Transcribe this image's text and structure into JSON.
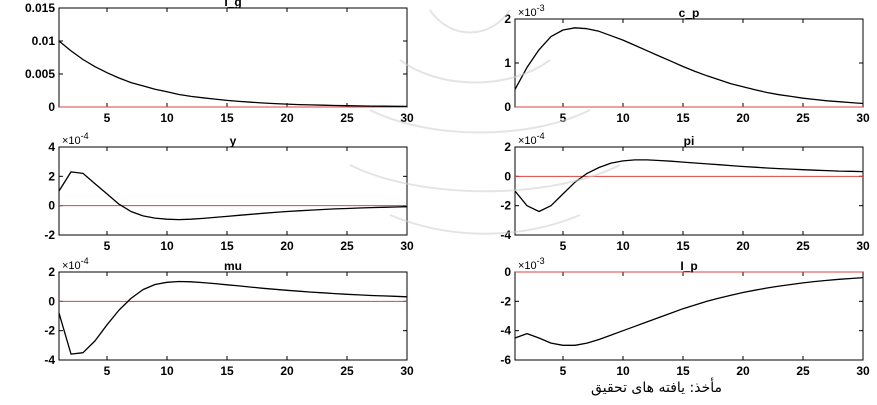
{
  "caption": "مأخذ: یافته های تحقیق",
  "chart_data": [
    {
      "type": "line",
      "title": "I_g",
      "exponent": "",
      "xlim": [
        1,
        30
      ],
      "ylim": [
        0,
        0.015
      ],
      "xticks": [
        "5",
        "10",
        "15",
        "20",
        "25",
        "30"
      ],
      "yticks": [
        {
          "v": 0,
          "label": "0"
        },
        {
          "v": 0.005,
          "label": "0.005"
        },
        {
          "v": 0.01,
          "label": "0.01"
        },
        {
          "v": 0.015,
          "label": "0.015"
        }
      ],
      "zero_line": true,
      "x": [
        1,
        2,
        3,
        4,
        5,
        6,
        7,
        8,
        9,
        10,
        11,
        12,
        13,
        14,
        15,
        16,
        17,
        18,
        19,
        20,
        21,
        22,
        23,
        24,
        25,
        26,
        27,
        28,
        29,
        30
      ],
      "y": [
        0.01,
        0.0085,
        0.0072,
        0.0061,
        0.0052,
        0.0044,
        0.0037,
        0.0032,
        0.0027,
        0.0023,
        0.0019,
        0.0016,
        0.0014,
        0.0012,
        0.001,
        0.00085,
        0.00072,
        0.00061,
        0.00052,
        0.00044,
        0.00037,
        0.00032,
        0.00027,
        0.00023,
        0.00019,
        0.00016,
        0.00014,
        0.00012,
        0.0001,
        9e-05
      ]
    },
    {
      "type": "line",
      "title": "c_p",
      "exponent": "-3",
      "xlim": [
        1,
        30
      ],
      "ylim": [
        0,
        2
      ],
      "xticks": [
        "5",
        "10",
        "15",
        "20",
        "25",
        "30"
      ],
      "yticks": [
        {
          "v": 0,
          "label": "0"
        },
        {
          "v": 1,
          "label": "1"
        },
        {
          "v": 2,
          "label": "2"
        }
      ],
      "zero_line": true,
      "x": [
        1,
        2,
        3,
        4,
        5,
        6,
        7,
        8,
        9,
        10,
        11,
        12,
        13,
        14,
        15,
        16,
        17,
        18,
        19,
        20,
        21,
        22,
        23,
        24,
        25,
        26,
        27,
        28,
        29,
        30
      ],
      "y": [
        0.4,
        0.9,
        1.3,
        1.6,
        1.75,
        1.8,
        1.78,
        1.72,
        1.62,
        1.52,
        1.4,
        1.28,
        1.16,
        1.04,
        0.92,
        0.81,
        0.71,
        0.62,
        0.53,
        0.46,
        0.39,
        0.33,
        0.28,
        0.24,
        0.2,
        0.17,
        0.14,
        0.12,
        0.1,
        0.08
      ]
    },
    {
      "type": "line",
      "title": "y",
      "exponent": "-4",
      "xlim": [
        1,
        30
      ],
      "ylim": [
        -2,
        4
      ],
      "xticks": [
        "5",
        "10",
        "15",
        "20",
        "25",
        "30"
      ],
      "yticks": [
        {
          "v": -2,
          "label": "-2"
        },
        {
          "v": 0,
          "label": "0"
        },
        {
          "v": 2,
          "label": "2"
        },
        {
          "v": 4,
          "label": "4"
        }
      ],
      "zero_line": true,
      "x": [
        1,
        2,
        3,
        4,
        5,
        6,
        7,
        8,
        9,
        10,
        11,
        12,
        13,
        14,
        15,
        16,
        17,
        18,
        19,
        20,
        21,
        22,
        23,
        24,
        25,
        26,
        27,
        28,
        29,
        30
      ],
      "y": [
        1.0,
        2.3,
        2.2,
        1.5,
        0.8,
        0.1,
        -0.4,
        -0.7,
        -0.85,
        -0.92,
        -0.95,
        -0.92,
        -0.87,
        -0.8,
        -0.73,
        -0.66,
        -0.59,
        -0.52,
        -0.46,
        -0.4,
        -0.35,
        -0.3,
        -0.26,
        -0.22,
        -0.19,
        -0.16,
        -0.13,
        -0.11,
        -0.09,
        -0.07
      ]
    },
    {
      "type": "line",
      "title": "pi",
      "exponent": "-4",
      "xlim": [
        1,
        30
      ],
      "ylim": [
        -4,
        2
      ],
      "xticks": [
        "5",
        "10",
        "15",
        "20",
        "25",
        "30"
      ],
      "yticks": [
        {
          "v": -4,
          "label": "-4"
        },
        {
          "v": -2,
          "label": "-2"
        },
        {
          "v": 0,
          "label": "0"
        },
        {
          "v": 2,
          "label": "2"
        }
      ],
      "zero_line": true,
      "x": [
        1,
        2,
        3,
        4,
        5,
        6,
        7,
        8,
        9,
        10,
        11,
        12,
        13,
        14,
        15,
        16,
        17,
        18,
        19,
        20,
        21,
        22,
        23,
        24,
        25,
        26,
        27,
        28,
        29,
        30
      ],
      "y": [
        -1.0,
        -2.0,
        -2.4,
        -2.0,
        -1.2,
        -0.4,
        0.2,
        0.6,
        0.9,
        1.05,
        1.12,
        1.12,
        1.08,
        1.03,
        0.97,
        0.91,
        0.85,
        0.79,
        0.73,
        0.67,
        0.62,
        0.57,
        0.53,
        0.49,
        0.45,
        0.42,
        0.39,
        0.36,
        0.34,
        0.32
      ]
    },
    {
      "type": "line",
      "title": "mu",
      "exponent": "-4",
      "xlim": [
        1,
        30
      ],
      "ylim": [
        -4,
        2
      ],
      "xticks": [
        "5",
        "10",
        "15",
        "20",
        "25",
        "30"
      ],
      "yticks": [
        {
          "v": -4,
          "label": "-4"
        },
        {
          "v": -2,
          "label": "-2"
        },
        {
          "v": 0,
          "label": "0"
        },
        {
          "v": 2,
          "label": "2"
        }
      ],
      "zero_line": true,
      "x": [
        1,
        2,
        3,
        4,
        5,
        6,
        7,
        8,
        9,
        10,
        11,
        12,
        13,
        14,
        15,
        16,
        17,
        18,
        19,
        20,
        21,
        22,
        23,
        24,
        25,
        26,
        27,
        28,
        29,
        30
      ],
      "y": [
        -0.8,
        -3.6,
        -3.5,
        -2.7,
        -1.6,
        -0.6,
        0.2,
        0.8,
        1.15,
        1.3,
        1.35,
        1.33,
        1.28,
        1.21,
        1.13,
        1.05,
        0.97,
        0.89,
        0.82,
        0.75,
        0.69,
        0.63,
        0.58,
        0.53,
        0.48,
        0.44,
        0.4,
        0.37,
        0.34,
        0.31
      ]
    },
    {
      "type": "line",
      "title": "I_p",
      "exponent": "-3",
      "xlim": [
        1,
        30
      ],
      "ylim": [
        -6,
        0
      ],
      "xticks": [
        "5",
        "10",
        "15",
        "20",
        "25",
        "30"
      ],
      "yticks": [
        {
          "v": -6,
          "label": "-6"
        },
        {
          "v": -4,
          "label": "-4"
        },
        {
          "v": -2,
          "label": "-2"
        },
        {
          "v": 0,
          "label": "0"
        }
      ],
      "zero_line": true,
      "x": [
        1,
        2,
        3,
        4,
        5,
        6,
        7,
        8,
        9,
        10,
        11,
        12,
        13,
        14,
        15,
        16,
        17,
        18,
        19,
        20,
        21,
        22,
        23,
        24,
        25,
        26,
        27,
        28,
        29,
        30
      ],
      "y": [
        -4.5,
        -4.2,
        -4.5,
        -4.85,
        -5.0,
        -5.0,
        -4.85,
        -4.6,
        -4.3,
        -4.0,
        -3.7,
        -3.4,
        -3.1,
        -2.8,
        -2.5,
        -2.25,
        -2.0,
        -1.78,
        -1.58,
        -1.4,
        -1.24,
        -1.09,
        -0.96,
        -0.85,
        -0.74,
        -0.65,
        -0.57,
        -0.5,
        -0.44,
        -0.38
      ]
    }
  ]
}
